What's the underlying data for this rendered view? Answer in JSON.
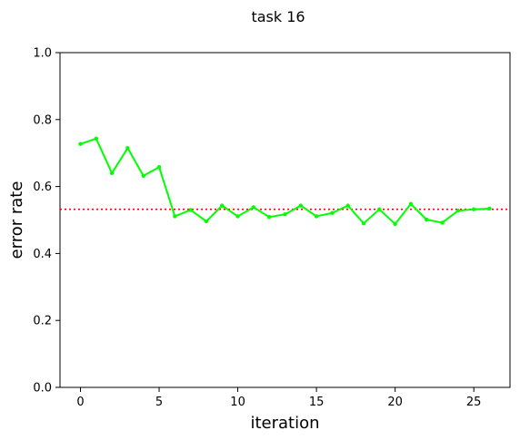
{
  "chart_data": {
    "type": "line",
    "title": "task 16",
    "xlabel": "iteration",
    "ylabel": "error rate",
    "xlim": [
      -1.3,
      27.3
    ],
    "ylim": [
      0.0,
      1.0
    ],
    "xticks": [
      0,
      5,
      10,
      15,
      20,
      25
    ],
    "yticks": [
      0.0,
      0.2,
      0.4,
      0.6,
      0.8,
      1.0
    ],
    "ytick_labels": [
      "0.0",
      "0.2",
      "0.4",
      "0.6",
      "0.8",
      "1.0"
    ],
    "grid": false,
    "series": [
      {
        "color": "#00ff00",
        "x": [
          0,
          1,
          2,
          3,
          4,
          5,
          6,
          7,
          8,
          9,
          10,
          11,
          12,
          13,
          14,
          15,
          16,
          17,
          18,
          19,
          20,
          21,
          22,
          23,
          24,
          25,
          26
        ],
        "y": [
          0.727,
          0.743,
          0.64,
          0.715,
          0.632,
          0.658,
          0.511,
          0.53,
          0.496,
          0.543,
          0.511,
          0.538,
          0.509,
          0.517,
          0.543,
          0.511,
          0.521,
          0.543,
          0.49,
          0.532,
          0.488,
          0.548,
          0.501,
          0.492,
          0.528,
          0.532,
          0.534
        ]
      }
    ],
    "reference_line": {
      "y": 0.532,
      "color": "#ff0000",
      "style": "dotted"
    }
  }
}
